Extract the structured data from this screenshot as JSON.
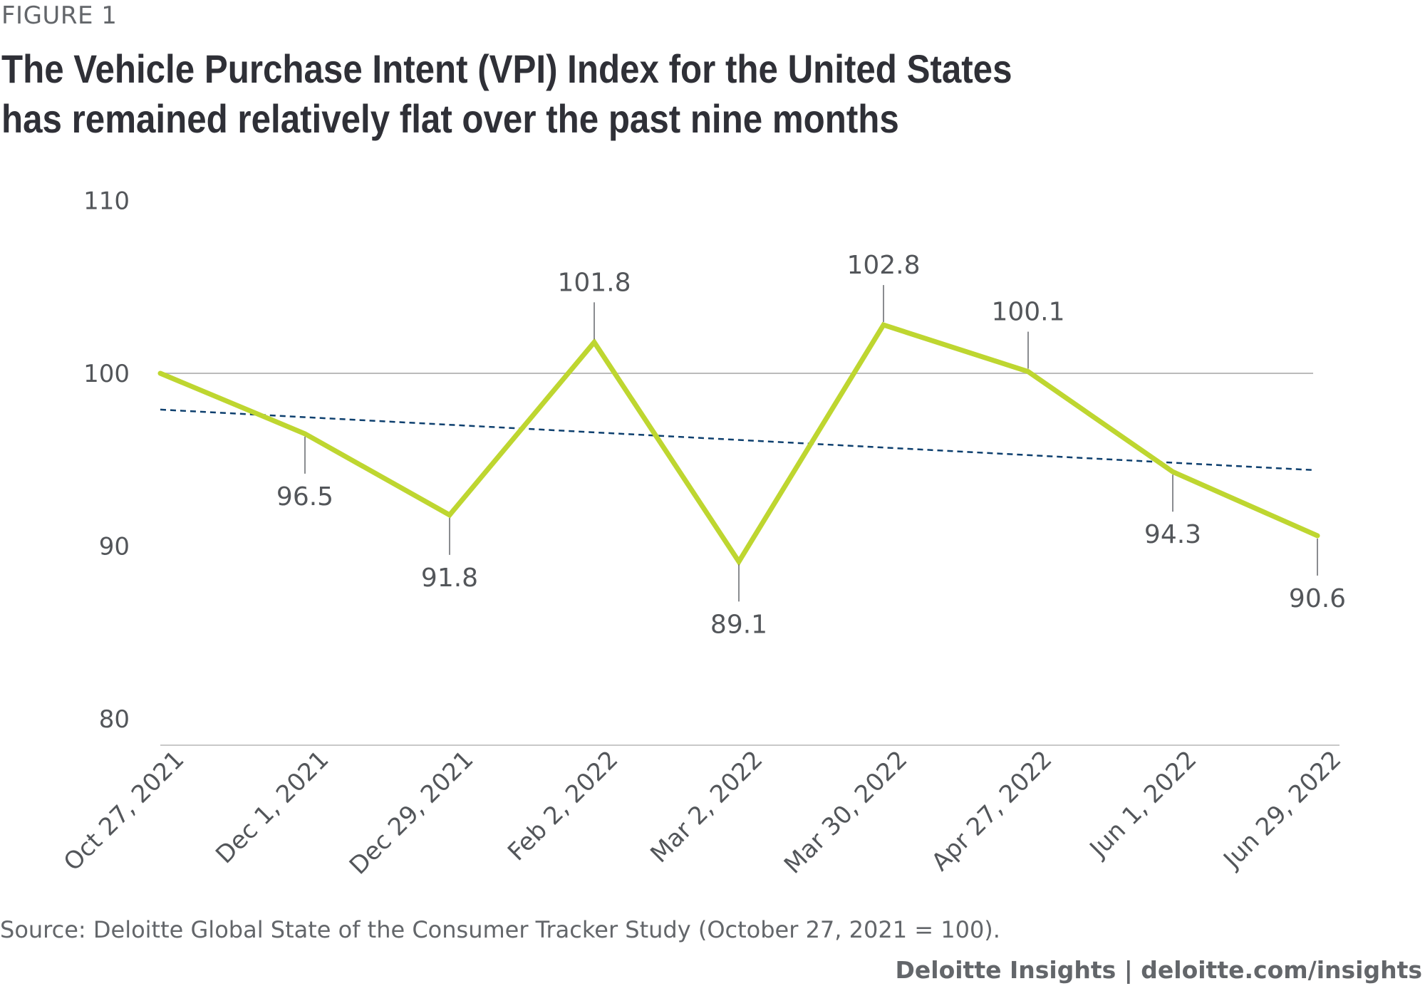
{
  "figure_label": "FIGURE 1",
  "source_text": "Source: Deloitte Global State of the Consumer Tracker Study (October 27, 2021 = 100).",
  "brand_text": "Deloitte Insights | deloitte.com/insights",
  "colors": {
    "series_line": "#bed630",
    "trend_line": "#0d3f6e",
    "reference_line": "#bbbbbb",
    "axis_line": "#c8c8c8",
    "text": "#53565a",
    "leader_line": "#63666a"
  },
  "chart_data": {
    "type": "line",
    "title": "The Vehicle Purchase Intent (VPI) Index for the United States has remained relatively flat over the past nine months",
    "xlabel": "",
    "ylabel": "",
    "categories": [
      "Oct 27, 2021",
      "Dec 1, 2021",
      "Dec 29, 2021",
      "Feb 2, 2022",
      "Mar 2, 2022",
      "Mar 30, 2022",
      "Apr 27, 2022",
      "Jun 1, 2022",
      "Jun 29, 2022"
    ],
    "series": [
      {
        "values": [
          100,
          96.5,
          91.8,
          101.8,
          89.1,
          102.8,
          100.1,
          94.3,
          90.6
        ],
        "data_labels": [
          "",
          "96.5",
          "91.8",
          "101.8",
          "89.1",
          "102.8",
          "100.1",
          "94.3",
          "90.6"
        ],
        "label_positions": [
          "none",
          "below",
          "below",
          "above",
          "below",
          "above",
          "above",
          "below",
          "below"
        ]
      }
    ],
    "trendline": {
      "style": "dashed",
      "start": 97.9,
      "end": 94.4
    },
    "reference_line": 100,
    "ylim": [
      80,
      110
    ],
    "yticks": [
      80,
      90,
      100,
      110
    ],
    "grid": false,
    "legend": "none"
  }
}
